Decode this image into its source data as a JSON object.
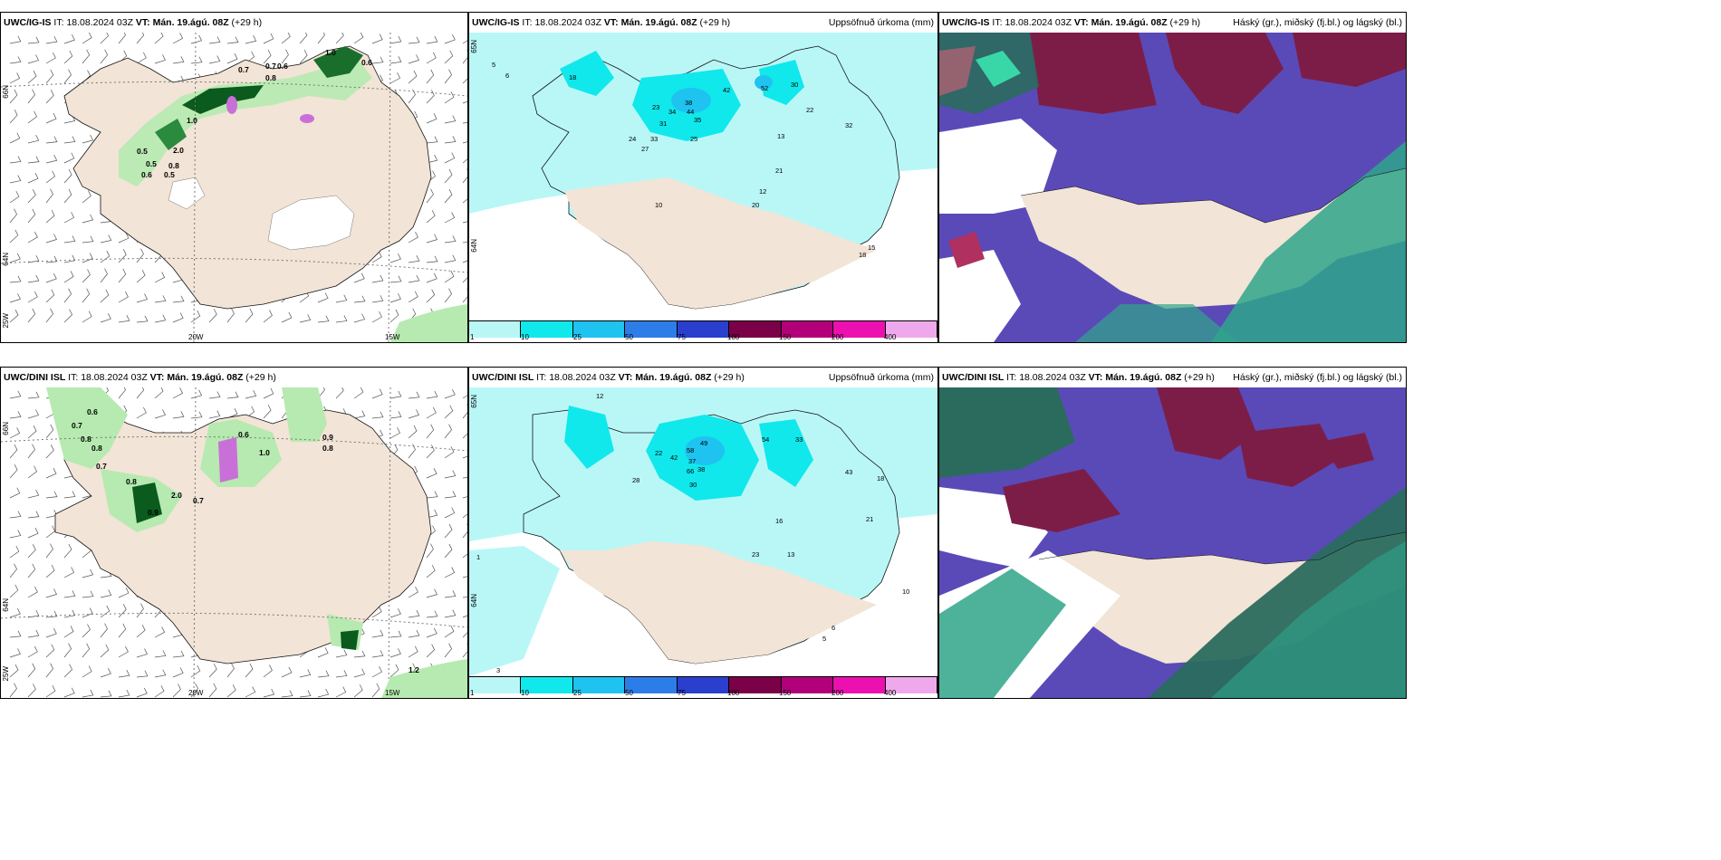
{
  "rows": [
    {
      "wind_panel": {
        "model": "UWC/IG-IS",
        "it_label": "IT:",
        "it_value": "18.08.2024 03Z",
        "vt_label": "VT:",
        "vt_value": "Mán. 19.ágú. 08Z",
        "lead": "(+29 h)",
        "lat_labels": [
          "66N",
          "64N"
        ],
        "lon_labels": [
          "25W",
          "20W",
          "15W"
        ],
        "values": [
          "1.0",
          "0.6",
          "0.7",
          "0.6",
          "0.5",
          "0.6",
          "0.5",
          "0.8",
          "2.0",
          "0.7",
          "0.8",
          "1.0",
          "0.5"
        ]
      },
      "precip_panel": {
        "model": "UWC/IG-IS",
        "it_label": "IT:",
        "it_value": "18.08.2024 03Z",
        "vt_label": "VT:",
        "vt_value": "Mán. 19.ágú. 08Z",
        "lead": "(+29 h)",
        "title_right": "Uppsöfnuð úrkoma (mm)",
        "lat_labels": [
          "65N",
          "64N"
        ],
        "values": [
          "5",
          "6",
          "18",
          "23",
          "34",
          "38",
          "44",
          "42",
          "52",
          "30",
          "31",
          "35",
          "24",
          "27",
          "33",
          "25",
          "22",
          "32",
          "21",
          "13",
          "12",
          "20",
          "15",
          "18",
          "10"
        ]
      },
      "cloud_panel": {
        "model": "UWC/IG-IS",
        "it_label": "IT:",
        "it_value": "18.08.2024 03Z",
        "vt_label": "VT:",
        "vt_value": "Mán. 19.ágú. 08Z",
        "lead": "(+29 h)",
        "title_right": "Háský (gr.), miðský (fj.bl.) og lágský (bl.)"
      }
    },
    {
      "wind_panel": {
        "model": "UWC/DINI ISL",
        "it_label": "IT:",
        "it_value": "18.08.2024 03Z",
        "vt_label": "VT:",
        "vt_value": "Mán. 19.ágú. 08Z",
        "lead": "(+29 h)",
        "lat_labels": [
          "66N",
          "64N"
        ],
        "lon_labels": [
          "25W",
          "20W",
          "15W"
        ],
        "values": [
          "0.6",
          "0.7",
          "0.8",
          "0.8",
          "0.7",
          "0.8",
          "2.0",
          "0.9",
          "0.7",
          "0.6",
          "1.0",
          "0.9",
          "0.8",
          "1.2"
        ]
      },
      "precip_panel": {
        "model": "UWC/DINI ISL",
        "it_label": "IT:",
        "it_value": "18.08.2024 03Z",
        "vt_label": "VT:",
        "vt_value": "Mán. 19.ágú. 08Z",
        "lead": "(+29 h)",
        "title_right": "Uppsöfnuð úrkoma (mm)",
        "lat_labels": [
          "65N",
          "64N"
        ],
        "values": [
          "12",
          "28",
          "22",
          "42",
          "49",
          "58",
          "37",
          "66",
          "38",
          "30",
          "54",
          "33",
          "43",
          "18",
          "21",
          "16",
          "23",
          "13",
          "10",
          "6",
          "5",
          "3",
          "1"
        ]
      },
      "cloud_panel": {
        "model": "UWC/DINI ISL",
        "it_label": "IT:",
        "it_value": "18.08.2024 03Z",
        "vt_label": "VT:",
        "vt_value": "Mán. 19.ágú. 08Z",
        "lead": "(+29 h)",
        "title_right": "Háský (gr.), miðský (fj.bl.) og lágský (bl.)"
      }
    }
  ],
  "colorbar": {
    "ticks": [
      "1",
      "10",
      "25",
      "50",
      "75",
      "100",
      "150",
      "200",
      "400"
    ],
    "colors": [
      "#b9f7f7",
      "#10e8ec",
      "#1ec3f0",
      "#2d7de8",
      "#2a3fce",
      "#7a0048",
      "#b2007a",
      "#ec10b0",
      "#f0a8ec"
    ]
  },
  "colors": {
    "land": "#f2e4d6",
    "sea_precip": "#b9f7f7",
    "precip_mid": "#10e8ec",
    "rain_light": "#b6eab0",
    "rain_dark": "#0b5a1e",
    "high_cloud": "#7c1d48",
    "mid_cloud": "#5a4ab8",
    "low_cloud": "#2fa58a"
  }
}
